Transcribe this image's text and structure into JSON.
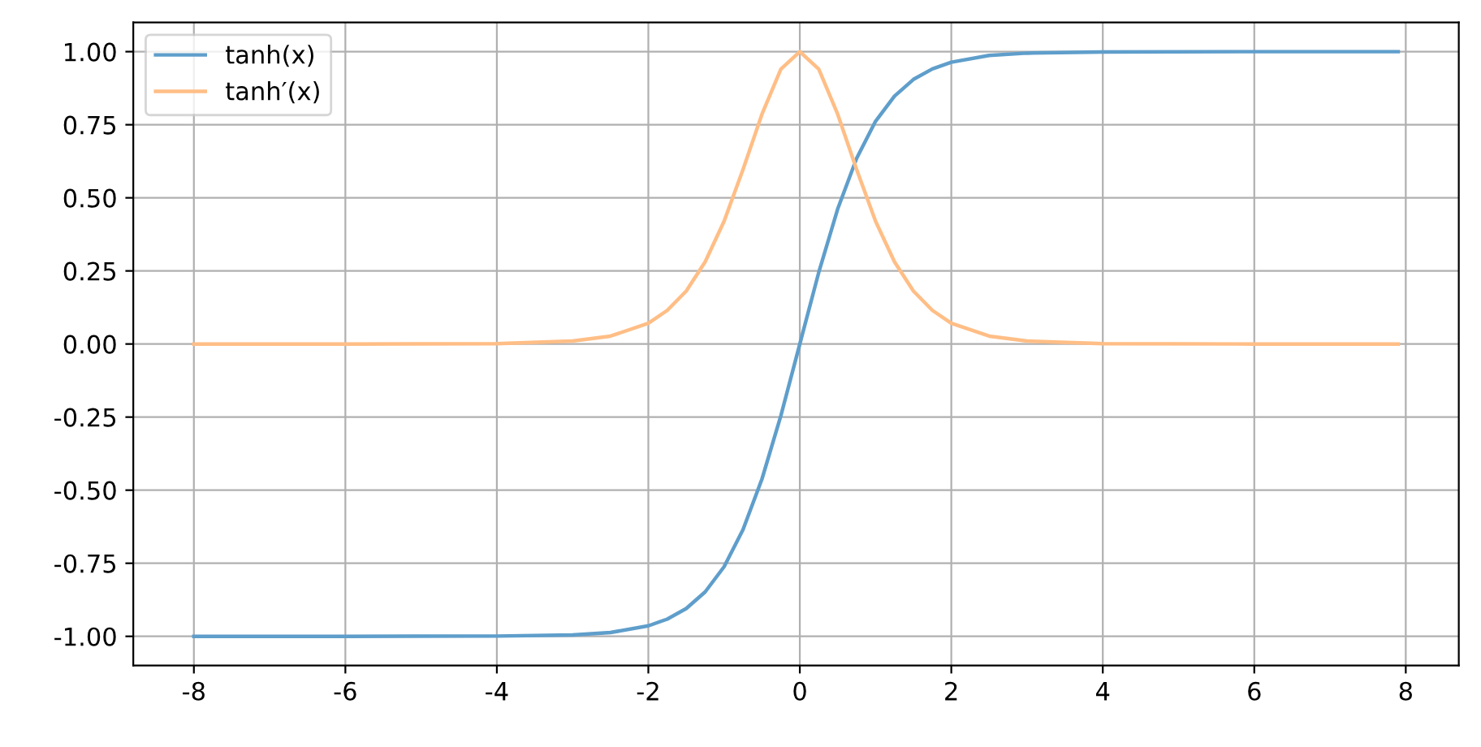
{
  "chart_data": {
    "type": "line",
    "x": [
      -8,
      -6,
      -4,
      -3,
      -2.5,
      -2,
      -1.75,
      -1.5,
      -1.25,
      -1,
      -0.75,
      -0.5,
      -0.25,
      0,
      0.25,
      0.5,
      0.75,
      1,
      1.25,
      1.5,
      1.75,
      2,
      2.5,
      3,
      4,
      6,
      7.9
    ],
    "series": [
      {
        "name": "tanh(x)",
        "color": "#5f9ecb",
        "values": [
          -1.0,
          -1.0,
          -0.999,
          -0.995,
          -0.987,
          -0.964,
          -0.941,
          -0.905,
          -0.848,
          -0.762,
          -0.635,
          -0.462,
          -0.245,
          0.0,
          0.245,
          0.462,
          0.635,
          0.762,
          0.848,
          0.905,
          0.941,
          0.964,
          0.987,
          0.995,
          0.999,
          1.0,
          1.0
        ]
      },
      {
        "name": "tanh′(x)",
        "color": "#ffbe86",
        "values": [
          0.0,
          0.0,
          0.001,
          0.01,
          0.027,
          0.071,
          0.115,
          0.181,
          0.281,
          0.42,
          0.597,
          0.786,
          0.94,
          1.0,
          0.94,
          0.786,
          0.597,
          0.42,
          0.281,
          0.181,
          0.115,
          0.071,
          0.027,
          0.01,
          0.001,
          0.0,
          0.0
        ]
      }
    ],
    "xlim": [
      -8.8,
      8.7
    ],
    "ylim": [
      -1.1,
      1.1
    ],
    "xticks": [
      {
        "value": -8,
        "label": "-8"
      },
      {
        "value": -6,
        "label": "-6"
      },
      {
        "value": -4,
        "label": "-4"
      },
      {
        "value": -2,
        "label": "-2"
      },
      0,
      2,
      4,
      6,
      8
    ],
    "yticks": [
      {
        "value": -1,
        "label": "-1.00"
      },
      {
        "value": -0.75,
        "label": "-0.75"
      },
      {
        "value": -0.5,
        "label": "-0.50"
      },
      {
        "value": -0.25,
        "label": "-0.25"
      },
      {
        "value": 0,
        "label": "0.00"
      },
      {
        "value": 0.25,
        "label": "0.25"
      },
      {
        "value": 0.5,
        "label": "0.50"
      },
      {
        "value": 0.75,
        "label": "0.75"
      },
      {
        "value": 1,
        "label": "1.00"
      }
    ],
    "grid": true,
    "legend": "top left",
    "marker": "none",
    "line_style": "solid"
  }
}
